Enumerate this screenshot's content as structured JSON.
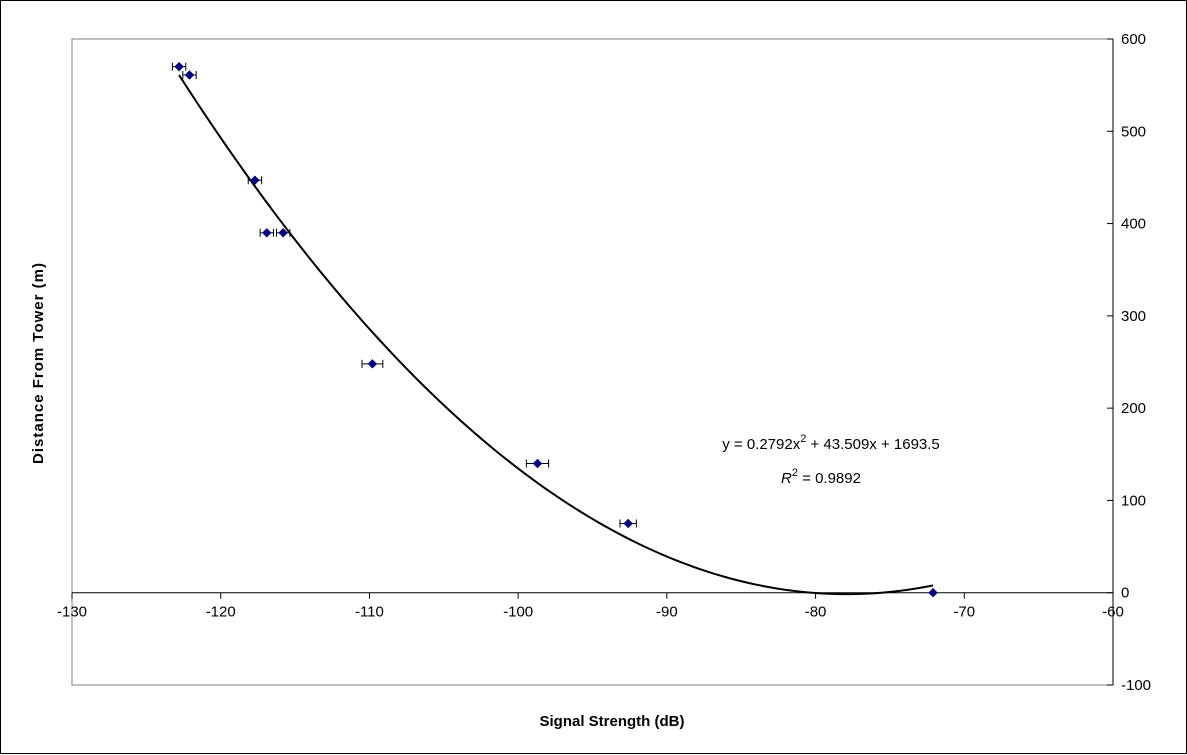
{
  "chart_data": {
    "type": "scatter",
    "title": "",
    "xlabel": "Signal Strength (dB)",
    "ylabel": "Distance From Tower (m)",
    "xlim": [
      -130,
      -60
    ],
    "ylim": [
      -100,
      600
    ],
    "x_ticks": [
      -130,
      -120,
      -110,
      -100,
      -90,
      -80,
      -70,
      -60
    ],
    "y_ticks": [
      -100,
      0,
      100,
      200,
      300,
      400,
      500,
      600
    ],
    "grid": false,
    "legend": "none",
    "marker_color": "#000080",
    "line_color": "#000000",
    "series": [
      {
        "x": [
          -122.8,
          -122.1,
          -117.7,
          -116.9,
          -115.8,
          -109.8,
          -98.7,
          -92.6,
          -72.1
        ],
        "y": [
          570,
          561,
          447,
          390,
          390,
          248,
          140,
          75,
          0
        ],
        "x_error": [
          0.45,
          0.45,
          0.45,
          0.45,
          0.45,
          0.7,
          0.75,
          0.55,
          0
        ]
      }
    ],
    "trendline": {
      "type": "polynomial",
      "order": 2,
      "coefficients": [
        0.2792,
        43.509,
        1693.5
      ],
      "x_range": [
        -122.8,
        -72.1
      ],
      "equation_parts": {
        "lead": "y = 0.2792x",
        "exp": "2",
        "rest": " + 43.509x + 1693.5"
      },
      "r2_parts": {
        "var": "R",
        "exp": "2",
        "rest": " = 0.9892"
      }
    }
  }
}
